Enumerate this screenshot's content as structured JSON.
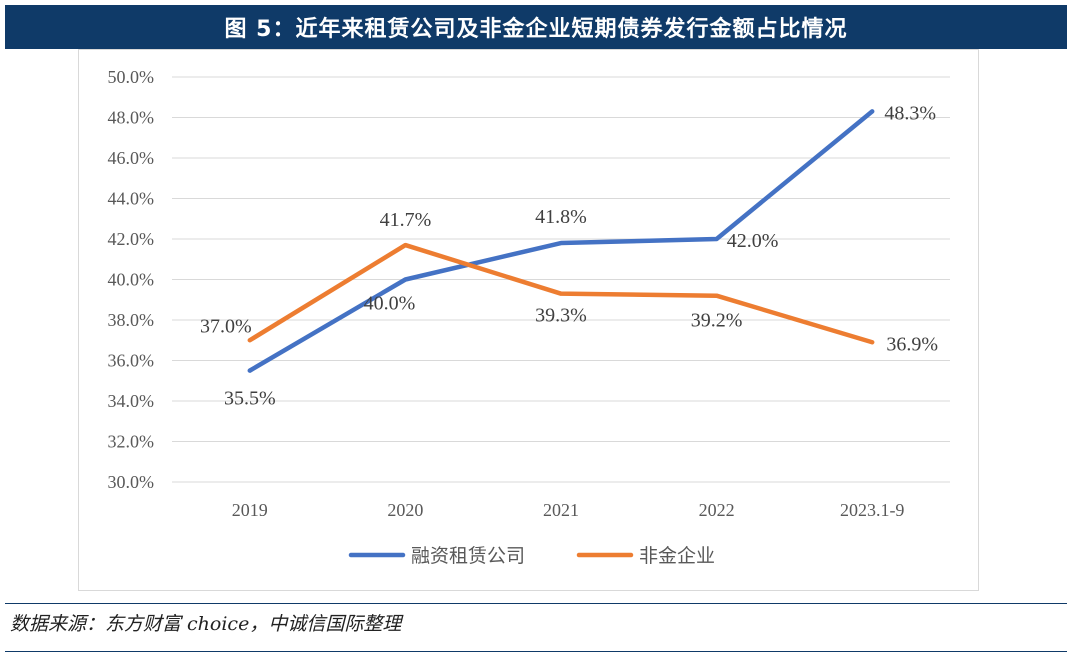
{
  "figure_title": "图 5：近年来租赁公司及非金企业短期债券发行金额占比情况",
  "source_note": "数据来源：东方财富 choice，中诚信国际整理",
  "chart_data": {
    "type": "line",
    "title": "",
    "xlabel": "",
    "ylabel": "",
    "categories": [
      "2019",
      "2020",
      "2021",
      "2022",
      "2023.1-9"
    ],
    "ylim": [
      30.0,
      50.0
    ],
    "yticks": [
      "30.0%",
      "32.0%",
      "34.0%",
      "36.0%",
      "38.0%",
      "40.0%",
      "42.0%",
      "44.0%",
      "46.0%",
      "48.0%",
      "50.0%"
    ],
    "grid": true,
    "legend_position": "bottom",
    "series": [
      {
        "name": "融资租赁公司",
        "color": "#4472c4",
        "values": [
          35.5,
          40.0,
          41.8,
          42.0,
          48.3
        ],
        "labels": [
          "35.5%",
          "40.0%",
          "41.8%",
          "42.0%",
          "48.3%"
        ]
      },
      {
        "name": "非金企业",
        "color": "#ed7d31",
        "values": [
          37.0,
          41.7,
          39.3,
          39.2,
          36.9
        ],
        "labels": [
          "37.0%",
          "41.7%",
          "39.3%",
          "39.2%",
          "36.9%"
        ]
      }
    ]
  }
}
